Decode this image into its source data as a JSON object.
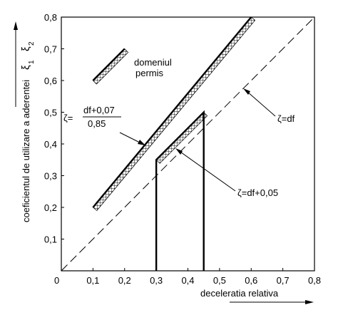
{
  "chart_data": {
    "type": "line",
    "xlabel": "deceleratia relativa",
    "ylabel": "coeficientul de utilizare a aderentei",
    "ylabel_symbols": [
      "ξ",
      "1",
      "ξ",
      "2"
    ],
    "xlim": [
      0,
      0.8
    ],
    "ylim": [
      0,
      0.8
    ],
    "origin_label": "0",
    "x_ticks": [
      {
        "v": 0.1,
        "label": "0,1"
      },
      {
        "v": 0.2,
        "label": "0,2"
      },
      {
        "v": 0.3,
        "label": "0,3"
      },
      {
        "v": 0.4,
        "label": "0,4"
      },
      {
        "v": 0.5,
        "label": "0,5"
      },
      {
        "v": 0.6,
        "label": "0,6"
      },
      {
        "v": 0.7,
        "label": "0,7"
      },
      {
        "v": 0.8,
        "label": "0,8"
      }
    ],
    "y_ticks": [
      {
        "v": 0.1,
        "label": "0,1"
      },
      {
        "v": 0.2,
        "label": "0,2"
      },
      {
        "v": 0.3,
        "label": "0,3"
      },
      {
        "v": 0.4,
        "label": "0,4"
      },
      {
        "v": 0.5,
        "label": "0,5"
      },
      {
        "v": 0.6,
        "label": "0,6"
      },
      {
        "v": 0.7,
        "label": "0,7"
      },
      {
        "v": 0.8,
        "label": "0,8"
      }
    ],
    "grid": false,
    "series": [
      {
        "key": "diag",
        "style": "dashed",
        "x": [
          0,
          0.8
        ],
        "y": [
          0,
          0.8
        ]
      },
      {
        "key": "upper",
        "style": "solid-hatched",
        "x": [
          0.1,
          0.6
        ],
        "y": [
          0.2,
          0.8
        ]
      },
      {
        "key": "lower",
        "style": "solid-hatched",
        "x": [
          0.3,
          0.3,
          0.45,
          0.45
        ],
        "y": [
          0,
          0.35,
          0.5,
          0
        ]
      }
    ],
    "legend_sample": {
      "x": [
        0.1,
        0.2
      ],
      "y": [
        0.6,
        0.7
      ]
    },
    "annotations": {
      "domain_line1": "domeniul",
      "domain_line2": "permis",
      "f1_lhs": "ζ=",
      "f1_num": "df+0,07",
      "f1_den": "0,85",
      "f2": "ζ=df",
      "f3": "ζ=df+0,05"
    }
  }
}
